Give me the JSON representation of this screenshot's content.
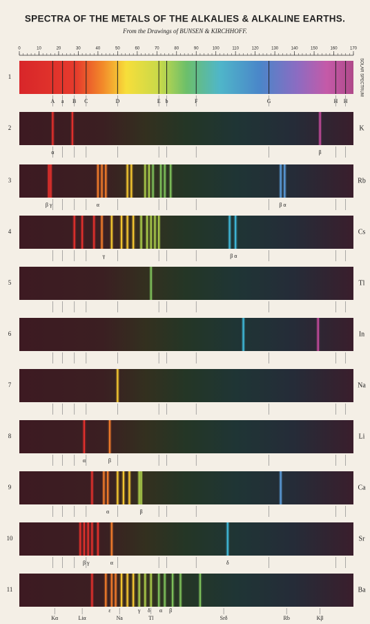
{
  "header": {
    "title": "SPECTRA OF THE METALS OF THE ALKALIES & ALKALINE EARTHS.",
    "subtitle": "From the Drawings of BUNSEN & KIRCHHOFF."
  },
  "scale": [
    0,
    10,
    20,
    30,
    40,
    50,
    60,
    70,
    80,
    90,
    100,
    110,
    120,
    130,
    140,
    150,
    160,
    170
  ],
  "spectra": [
    {
      "number": "1",
      "name": "SOLAR SPECTRUM",
      "line_labels": [
        "A",
        "a",
        "B",
        "C",
        "D",
        "E",
        "b",
        "F",
        "G",
        "H",
        "H"
      ]
    },
    {
      "number": "2",
      "name": "K",
      "line_labels": [
        "α",
        "β"
      ]
    },
    {
      "number": "3",
      "name": "Rb",
      "line_labels": [
        "β γ",
        "α",
        "β α"
      ]
    },
    {
      "number": "4",
      "name": "Cs",
      "line_labels": [
        "γ",
        "β α"
      ]
    },
    {
      "number": "5",
      "name": "Tl",
      "line_labels": []
    },
    {
      "number": "6",
      "name": "In",
      "line_labels": []
    },
    {
      "number": "7",
      "name": "Na",
      "line_labels": []
    },
    {
      "number": "8",
      "name": "Li",
      "line_labels": [
        "α",
        "β"
      ]
    },
    {
      "number": "9",
      "name": "Ca",
      "line_labels": [
        "α",
        "β"
      ]
    },
    {
      "number": "10",
      "name": "Sr",
      "line_labels": [
        "β γ",
        "α",
        "δ"
      ]
    },
    {
      "number": "11",
      "name": "Ba",
      "line_labels": []
    }
  ],
  "footer_labels": [
    "Kα",
    "Liα",
    "ε",
    "Na",
    "γ",
    "δ",
    "Tl",
    "α",
    "β",
    "Srδ",
    "Rb",
    "Kβ"
  ]
}
